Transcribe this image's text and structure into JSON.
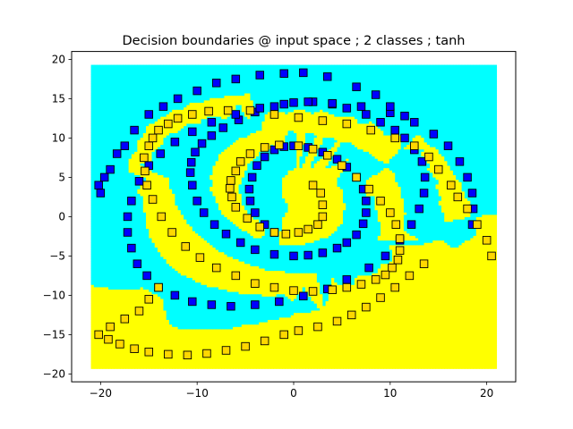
{
  "chart_data": {
    "type": "scatter",
    "title": "Decision boundaries @ input space ; 2 classes ; tanh",
    "xlabel": "",
    "ylabel": "",
    "xlim": [
      -23,
      23
    ],
    "ylim": [
      -21,
      21
    ],
    "x_ticks": [
      -20,
      -10,
      0,
      10,
      20
    ],
    "y_ticks": [
      -20,
      -15,
      -10,
      -5,
      0,
      5,
      10,
      15,
      20
    ],
    "x_tick_labels": [
      "−20",
      "−10",
      "0",
      "10",
      "20"
    ],
    "y_tick_labels": [
      "−20",
      "−15",
      "−10",
      "−5",
      "0",
      "5",
      "10",
      "15",
      "20"
    ],
    "grid": false,
    "region_extent": {
      "x": [
        -21,
        21
      ],
      "y": [
        -19.3,
        19.3
      ]
    },
    "region_colors": {
      "class_0": "#00ffff",
      "class_1": "#ffff00"
    },
    "marker": "square",
    "series": [
      {
        "class": 0,
        "color": "#0000ff",
        "x": [
          -2.0,
          -3.0,
          -4.0,
          -4.5,
          -4.6,
          -4.3,
          -3.8,
          -3.0,
          -2.0,
          -1.0,
          0.0,
          1.5,
          3.0,
          4.5,
          5.5,
          6.5,
          7.2,
          7.5,
          7.5,
          7.2,
          6.5,
          5.5,
          4.5,
          3.0,
          1.5,
          0.0,
          -2.0,
          -4.0,
          -5.5,
          -7.0,
          -8.2,
          -9.3,
          -10.0,
          -10.5,
          -10.7,
          -10.6,
          -10.2,
          -9.5,
          -8.5,
          -7.3,
          -5.7,
          -4.0,
          -2.0,
          0.0,
          2.0,
          4.0,
          5.5,
          7.5,
          9.0,
          10.5,
          11.5,
          12.5,
          13.3,
          13.6,
          13.5,
          13.0,
          12.2,
          11.0,
          9.5,
          7.8,
          5.5,
          3.5,
          1.0,
          -1.5,
          -4.0,
          -6.5,
          -8.5,
          -10.5,
          -12.3,
          -14.0,
          -15.2,
          -16.2,
          -16.8,
          -17.2,
          -17.2,
          -16.8,
          -16.0,
          -15.0,
          -13.8,
          -12.3,
          -10.5,
          -8.5,
          -6.0,
          -3.5,
          -1.0,
          1.5,
          4.0,
          7.0,
          10.0,
          12.5,
          14.5,
          16.0,
          17.2,
          18.0,
          18.5,
          18.6,
          18.5,
          -20.2,
          -20.0,
          -19.6,
          -19.0,
          -18.3,
          -17.5,
          -16.5,
          -15.0,
          -13.5,
          -12.0,
          -10.0,
          -8.0,
          -6.0,
          -3.5,
          -1.0,
          1.0,
          3.5,
          6.5,
          8.5,
          10.0,
          11.5
        ],
        "y": [
          -2.0,
          -1.0,
          0.5,
          2.0,
          3.5,
          5.0,
          6.5,
          7.6,
          8.5,
          8.9,
          9.0,
          8.8,
          8.2,
          7.3,
          6.3,
          5.0,
          3.5,
          2.0,
          0.5,
          -0.9,
          -2.3,
          -3.3,
          -4.0,
          -4.6,
          -4.9,
          -5.0,
          -4.8,
          -4.2,
          -3.3,
          -2.2,
          -1.0,
          0.5,
          2.0,
          4.0,
          5.6,
          6.9,
          8.2,
          9.3,
          10.3,
          11.3,
          12.3,
          13.3,
          14.0,
          14.5,
          14.6,
          14.3,
          13.8,
          13.0,
          12.0,
          11.0,
          10.0,
          8.5,
          7.0,
          5.0,
          3.0,
          1.0,
          -1.0,
          -3.0,
          -5.0,
          -6.5,
          -8.0,
          -9.2,
          -10.1,
          -10.8,
          -11.2,
          -11.4,
          -11.2,
          -10.8,
          -10.0,
          -9.0,
          -7.5,
          -6.0,
          -4.0,
          -2.0,
          0.0,
          2.0,
          4.5,
          6.5,
          8.0,
          9.5,
          10.8,
          12.0,
          13.0,
          13.8,
          14.3,
          14.6,
          14.4,
          14.0,
          13.2,
          12.0,
          10.5,
          9.0,
          7.0,
          5.0,
          3.0,
          1.0,
          -1.0,
          4.0,
          3.0,
          5.0,
          6.0,
          8.0,
          9.0,
          11.0,
          13.0,
          14.0,
          15.0,
          16.0,
          17.0,
          17.5,
          18.0,
          18.2,
          18.3,
          17.8,
          16.5,
          15.5,
          14.0,
          12.8
        ]
      },
      {
        "class": 1,
        "color": "#ffd700",
        "x": [
          2.0,
          2.8,
          3.0,
          3.0,
          2.5,
          1.5,
          0.5,
          -0.8,
          -2.0,
          -3.5,
          -4.8,
          -6.0,
          -6.4,
          -6.6,
          -6.5,
          -6.0,
          -5.5,
          -4.5,
          -3.0,
          -1.5,
          0.5,
          2.0,
          3.5,
          5.0,
          6.5,
          7.8,
          9.0,
          10.0,
          10.6,
          11.0,
          11.0,
          10.8,
          10.2,
          9.5,
          8.5,
          7.0,
          5.5,
          4.0,
          2.0,
          0.0,
          -2.0,
          -4.0,
          -6.0,
          -8.0,
          -9.7,
          -11.2,
          -12.6,
          -13.7,
          -14.6,
          -15.2,
          -15.4,
          -15.5,
          -15.0,
          -14.6,
          -14.0,
          -13.0,
          -12.0,
          -10.5,
          -8.8,
          -6.8,
          -4.5,
          -2.0,
          0.5,
          3.0,
          5.5,
          8.0,
          10.5,
          12.5,
          14.0,
          15.0,
          16.3,
          17.0,
          18.0,
          19.0,
          20.0,
          20.5,
          -14.0,
          -15.0,
          -16.0,
          -17.5,
          -19.0,
          -20.2,
          -19.2,
          -18.0,
          -16.5,
          -15.0,
          -13.0,
          -11.0,
          -9.0,
          -7.0,
          -5.0,
          -3.0,
          -1.0,
          0.5,
          2.5,
          4.5,
          6.0,
          7.5,
          9.0,
          10.5,
          12.0,
          13.5
        ],
        "y": [
          4.0,
          3.0,
          1.5,
          0.0,
          -1.0,
          -1.6,
          -2.0,
          -2.2,
          -2.0,
          -1.3,
          -0.2,
          1.2,
          2.5,
          3.6,
          4.6,
          5.8,
          7.0,
          8.0,
          8.8,
          9.1,
          9.0,
          8.6,
          7.8,
          6.5,
          5.0,
          3.5,
          2.0,
          0.5,
          -1.0,
          -2.8,
          -4.3,
          -5.5,
          -6.5,
          -7.4,
          -8.0,
          -8.6,
          -9.0,
          -9.3,
          -9.5,
          -9.4,
          -9.0,
          -8.5,
          -7.5,
          -6.5,
          -5.2,
          -3.8,
          -2.0,
          0.0,
          2.2,
          4.0,
          5.8,
          7.5,
          9.0,
          10.0,
          11.0,
          11.8,
          12.5,
          13.0,
          13.4,
          13.5,
          13.5,
          13.0,
          12.6,
          12.2,
          11.8,
          11.0,
          10.0,
          9.0,
          7.6,
          6.0,
          4.0,
          2.5,
          1.0,
          -1.0,
          -3.0,
          -5.0,
          -9.0,
          -10.5,
          -12.0,
          -13.0,
          -14.0,
          -15.0,
          -15.6,
          -16.2,
          -16.8,
          -17.2,
          -17.5,
          -17.6,
          -17.4,
          -17.0,
          -16.5,
          -15.8,
          -15.0,
          -14.5,
          -14.0,
          -13.3,
          -12.5,
          -11.5,
          -10.3,
          -9.0,
          -7.5,
          -6.0
        ]
      }
    ]
  }
}
